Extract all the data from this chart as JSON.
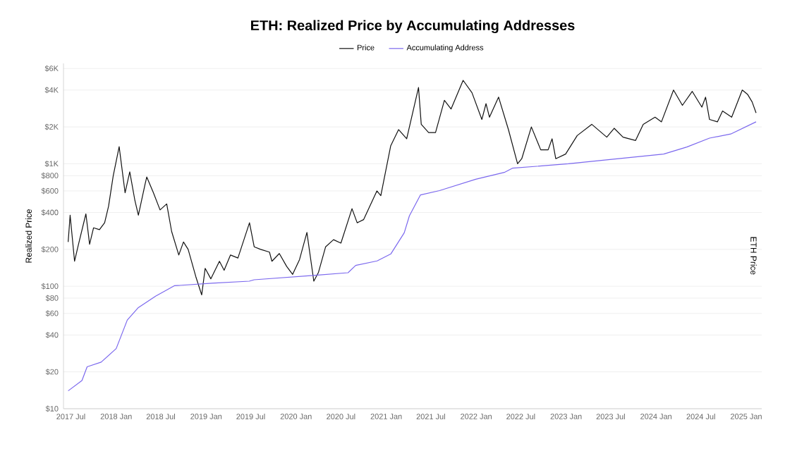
{
  "chart_data": {
    "type": "line",
    "title": "ETH: Realized Price by Accumulating Addresses",
    "ylabel": "Realized Price",
    "y2label": "ETH Price",
    "log": "y",
    "grid": "y",
    "legend": "top",
    "marker": "none",
    "line_style": "solid",
    "xlim": [
      "2017-06-01",
      "2025-03-05"
    ],
    "ylim": [
      10,
      6600
    ],
    "xticks": [
      {
        "value": "2017-07",
        "label": "2017 Jul"
      },
      {
        "value": "2018-01",
        "label": "2018 Jan"
      },
      {
        "value": "2018-07",
        "label": "2018 Jul"
      },
      {
        "value": "2019-01",
        "label": "2019 Jan"
      },
      {
        "value": "2019-07",
        "label": "2019 Jul"
      },
      {
        "value": "2020-01",
        "label": "2020 Jan"
      },
      {
        "value": "2020-07",
        "label": "2020 Jul"
      },
      {
        "value": "2021-01",
        "label": "2021 Jan"
      },
      {
        "value": "2021-07",
        "label": "2021 Jul"
      },
      {
        "value": "2022-01",
        "label": "2022 Jan"
      },
      {
        "value": "2022-07",
        "label": "2022 Jul"
      },
      {
        "value": "2023-01",
        "label": "2023 Jan"
      },
      {
        "value": "2023-07",
        "label": "2023 Jul"
      },
      {
        "value": "2024-01",
        "label": "2024 Jan"
      },
      {
        "value": "2024-07",
        "label": "2024 Jul"
      },
      {
        "value": "2025-01",
        "label": "2025 Jan"
      }
    ],
    "yticks": [
      {
        "value": 10,
        "label": "$10"
      },
      {
        "value": 20,
        "label": "$20"
      },
      {
        "value": 40,
        "label": "$40"
      },
      {
        "value": 60,
        "label": "$60"
      },
      {
        "value": 80,
        "label": "$80"
      },
      {
        "value": 100,
        "label": "$100"
      },
      {
        "value": 200,
        "label": "$200"
      },
      {
        "value": 400,
        "label": "$400"
      },
      {
        "value": 600,
        "label": "$600"
      },
      {
        "value": 800,
        "label": "$800"
      },
      {
        "value": 1000,
        "label": "$1K"
      },
      {
        "value": 2000,
        "label": "$2K"
      },
      {
        "value": 4000,
        "label": "$4K"
      },
      {
        "value": 6000,
        "label": "$6K"
      }
    ],
    "series": [
      {
        "name": "Price",
        "color": "#111111",
        "x": [
          "2017-06-20",
          "2017-06-28",
          "2017-07-16",
          "2017-08-01",
          "2017-08-31",
          "2017-09-15",
          "2017-10-01",
          "2017-10-25",
          "2017-11-15",
          "2017-12-01",
          "2017-12-20",
          "2018-01-13",
          "2018-02-06",
          "2018-02-25",
          "2018-03-18",
          "2018-04-01",
          "2018-04-28",
          "2018-05-05",
          "2018-06-01",
          "2018-06-28",
          "2018-07-25",
          "2018-08-14",
          "2018-09-12",
          "2018-10-01",
          "2018-10-20",
          "2018-11-20",
          "2018-12-14",
          "2018-12-28",
          "2019-01-20",
          "2019-02-24",
          "2019-03-15",
          "2019-04-10",
          "2019-05-10",
          "2019-06-26",
          "2019-07-15",
          "2019-08-10",
          "2019-09-15",
          "2019-09-25",
          "2019-10-25",
          "2019-11-24",
          "2019-12-18",
          "2020-01-15",
          "2020-02-14",
          "2020-03-13",
          "2020-04-01",
          "2020-04-30",
          "2020-06-01",
          "2020-07-01",
          "2020-08-15",
          "2020-09-05",
          "2020-10-01",
          "2020-11-24",
          "2020-12-10",
          "2021-01-19",
          "2021-02-20",
          "2021-03-25",
          "2021-05-12",
          "2021-05-23",
          "2021-06-22",
          "2021-07-20",
          "2021-08-25",
          "2021-09-21",
          "2021-11-09",
          "2021-12-15",
          "2022-01-24",
          "2022-02-10",
          "2022-02-24",
          "2022-04-02",
          "2022-05-12",
          "2022-06-18",
          "2022-07-05",
          "2022-08-13",
          "2022-09-20",
          "2022-10-20",
          "2022-11-05",
          "2022-11-20",
          "2022-12-30",
          "2023-02-15",
          "2023-04-15",
          "2023-06-15",
          "2023-07-15",
          "2023-08-20",
          "2023-10-10",
          "2023-11-10",
          "2023-12-28",
          "2024-01-23",
          "2024-03-12",
          "2024-04-17",
          "2024-05-27",
          "2024-07-05",
          "2024-07-20",
          "2024-08-05",
          "2024-09-06",
          "2024-09-27",
          "2024-11-03",
          "2024-12-16",
          "2025-01-06",
          "2025-01-25",
          "2025-02-10"
        ],
        "values": [
          230,
          380,
          160,
          220,
          390,
          220,
          300,
          290,
          330,
          450,
          800,
          1380,
          580,
          860,
          500,
          380,
          680,
          780,
          580,
          420,
          470,
          280,
          180,
          230,
          200,
          120,
          85,
          140,
          115,
          160,
          135,
          180,
          170,
          330,
          210,
          200,
          190,
          160,
          185,
          145,
          125,
          165,
          275,
          110,
          130,
          210,
          240,
          225,
          430,
          330,
          350,
          600,
          550,
          1400,
          1900,
          1600,
          4200,
          2100,
          1800,
          1800,
          3300,
          2800,
          4800,
          3800,
          2300,
          3100,
          2400,
          3500,
          1900,
          1000,
          1100,
          2000,
          1300,
          1300,
          1600,
          1100,
          1200,
          1700,
          2100,
          1650,
          1950,
          1650,
          1550,
          2100,
          2400,
          2200,
          4000,
          3000,
          3900,
          2900,
          3500,
          2300,
          2200,
          2700,
          2400,
          4000,
          3700,
          3200,
          2600
        ]
      },
      {
        "name": "Accumulating Address",
        "color": "#7b68ee",
        "x": [
          "2017-06-20",
          "2017-08-15",
          "2017-09-05",
          "2017-11-01",
          "2018-01-01",
          "2018-02-15",
          "2018-04-01",
          "2018-06-10",
          "2018-08-25",
          "2019-01-25",
          "2019-06-25",
          "2019-07-15",
          "2020-03-20",
          "2020-07-30",
          "2020-08-30",
          "2020-11-25",
          "2021-01-20",
          "2021-03-15",
          "2021-04-05",
          "2021-05-20",
          "2021-08-05",
          "2021-12-30",
          "2022-04-25",
          "2022-05-28",
          "2023-01-10",
          "2024-02-01",
          "2024-05-05",
          "2024-08-05",
          "2024-10-30",
          "2025-02-10"
        ],
        "values": [
          14,
          17,
          22,
          24,
          31,
          53,
          67,
          83,
          101,
          106,
          110,
          113,
          123,
          129,
          148,
          161,
          184,
          273,
          376,
          557,
          604,
          748,
          850,
          920,
          1000,
          1200,
          1370,
          1620,
          1750,
          2200
        ]
      }
    ]
  }
}
